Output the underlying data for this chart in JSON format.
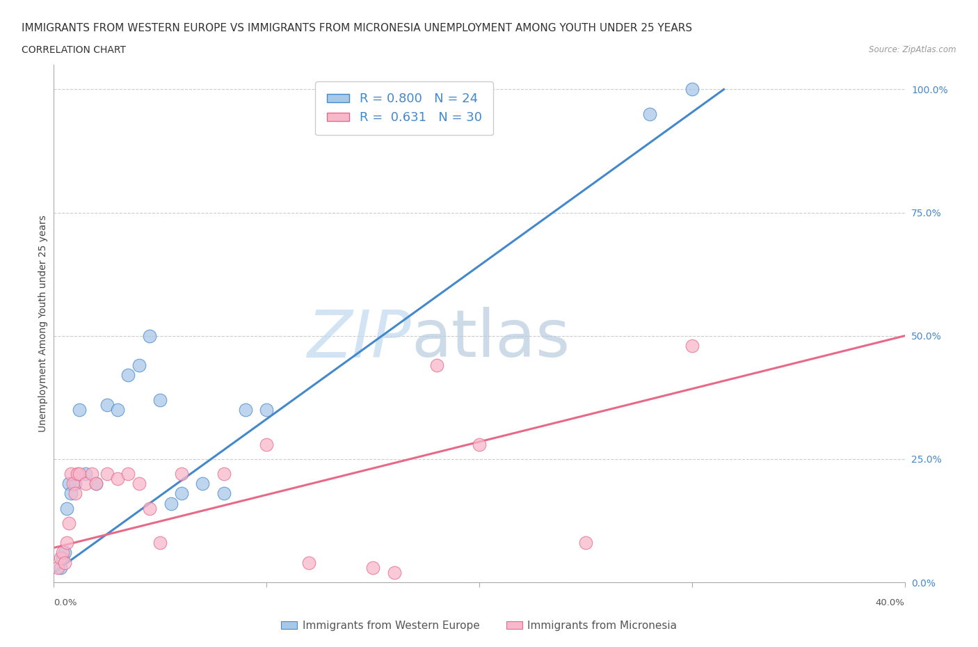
{
  "title": "IMMIGRANTS FROM WESTERN EUROPE VS IMMIGRANTS FROM MICRONESIA UNEMPLOYMENT AMONG YOUTH UNDER 25 YEARS",
  "subtitle": "CORRELATION CHART",
  "source": "Source: ZipAtlas.com",
  "ylabel": "Unemployment Among Youth under 25 years",
  "xlim": [
    0.0,
    40.0
  ],
  "ylim": [
    0.0,
    105.0
  ],
  "yticks": [
    0,
    25,
    50,
    75,
    100
  ],
  "ytick_labels": [
    "0.0%",
    "25.0%",
    "50.0%",
    "75.0%",
    "100.0%"
  ],
  "xtick_positions": [
    0,
    10,
    20,
    30,
    40
  ],
  "watermark_zip": "ZIP",
  "watermark_atlas": "atlas",
  "blue_color": "#a8c8e8",
  "pink_color": "#f8b8cc",
  "blue_line_color": "#4488cc",
  "pink_line_color": "#e86888",
  "blue_R": 0.8,
  "blue_N": 24,
  "pink_R": 0.631,
  "pink_N": 30,
  "legend_blue_label": "Immigrants from Western Europe",
  "legend_pink_label": "Immigrants from Micronesia",
  "blue_scatter_x": [
    0.3,
    0.4,
    0.5,
    0.6,
    0.7,
    0.8,
    1.0,
    1.2,
    1.5,
    2.0,
    2.5,
    3.0,
    3.5,
    4.0,
    4.5,
    5.0,
    5.5,
    6.0,
    7.0,
    8.0,
    9.0,
    10.0,
    28.0,
    30.0
  ],
  "blue_scatter_y": [
    3,
    5,
    6,
    15,
    20,
    18,
    20,
    35,
    22,
    20,
    36,
    35,
    42,
    44,
    50,
    37,
    16,
    18,
    20,
    18,
    35,
    35,
    95,
    100
  ],
  "blue_trendline_x": [
    0.0,
    31.5
  ],
  "blue_trendline_y": [
    2.0,
    100.0
  ],
  "pink_scatter_x": [
    0.2,
    0.3,
    0.4,
    0.5,
    0.6,
    0.7,
    0.8,
    0.9,
    1.0,
    1.1,
    1.2,
    1.5,
    1.8,
    2.0,
    2.5,
    3.0,
    3.5,
    4.0,
    4.5,
    5.0,
    6.0,
    8.0,
    10.0,
    12.0,
    15.0,
    16.0,
    18.0,
    20.0,
    25.0,
    30.0
  ],
  "pink_scatter_y": [
    3,
    5,
    6,
    4,
    8,
    12,
    22,
    20,
    18,
    22,
    22,
    20,
    22,
    20,
    22,
    21,
    22,
    20,
    15,
    8,
    22,
    22,
    28,
    4,
    3,
    2,
    44,
    28,
    8,
    48
  ],
  "pink_trendline_x": [
    0.0,
    40.0
  ],
  "pink_trendline_y": [
    7.0,
    50.0
  ],
  "bg_color": "#ffffff",
  "grid_color": "#cccccc",
  "title_fontsize": 11,
  "subtitle_fontsize": 10,
  "axis_label_fontsize": 10,
  "legend_fontsize": 13,
  "watermark_fontsize_zip": 68,
  "watermark_fontsize_atlas": 68,
  "watermark_color_zip": "#c0d8ee",
  "watermark_color_atlas": "#b8cce0",
  "tick_label_color": "#4488cc"
}
